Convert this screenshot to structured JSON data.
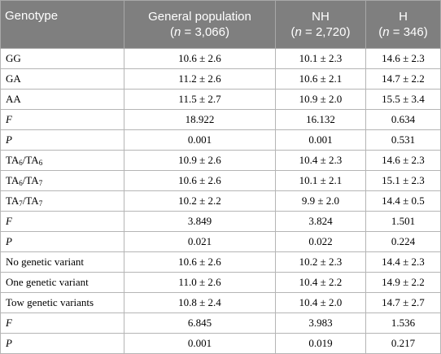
{
  "header": {
    "genotype": "Genotype",
    "general_title": "General population",
    "general_n": "(n = 3,066)",
    "nh_title": "NH",
    "nh_n": "(n = 2,720)",
    "h_title": "H",
    "h_n": "(n = 346)"
  },
  "rows": [
    {
      "label": "GG",
      "italic": false,
      "general": "10.6 ± 2.6",
      "nh": "10.1 ± 2.3",
      "h": "14.6 ± 2.3"
    },
    {
      "label": "GA",
      "italic": false,
      "general": "11.2 ± 2.6",
      "nh": "10.6 ± 2.1",
      "h": "14.7 ± 2.2"
    },
    {
      "label": "AA",
      "italic": false,
      "general": "11.5 ± 2.7",
      "nh": "10.9 ± 2.0",
      "h": "15.5 ± 3.4"
    },
    {
      "label": "F",
      "italic": true,
      "general": "18.922",
      "nh": "16.132",
      "h": "0.634"
    },
    {
      "label": "P",
      "italic": true,
      "general": "0.001",
      "nh": "0.001",
      "h": "0.531"
    },
    {
      "label": "TA6/TA6",
      "label_parts": [
        "TA",
        "6",
        "/TA",
        "6"
      ],
      "italic": false,
      "general": "10.9 ± 2.6",
      "nh": "10.4 ± 2.3",
      "h": "14.6 ± 2.3"
    },
    {
      "label": "TA6/TA7",
      "label_parts": [
        "TA",
        "6",
        "/TA",
        "7"
      ],
      "italic": false,
      "general": "10.6 ± 2.6",
      "nh": "10.1 ± 2.1",
      "h": "15.1 ± 2.3"
    },
    {
      "label": "TA7/TA7",
      "label_parts": [
        "TA",
        "7",
        "/TA",
        "7"
      ],
      "italic": false,
      "general": "10.2 ± 2.2",
      "nh": "9.9 ± 2.0",
      "h": "14.4 ± 0.5"
    },
    {
      "label": "F",
      "italic": true,
      "general": "3.849",
      "nh": "3.824",
      "h": "1.501"
    },
    {
      "label": "P",
      "italic": true,
      "general": "0.021",
      "nh": "0.022",
      "h": "0.224"
    },
    {
      "label": "No genetic variant",
      "italic": false,
      "general": "10.6 ± 2.6",
      "nh": "10.2 ± 2.3",
      "h": "14.4 ± 2.3"
    },
    {
      "label": "One genetic variant",
      "italic": false,
      "general": "11.0 ± 2.6",
      "nh": "10.4 ± 2.2",
      "h": "14.9 ± 2.2"
    },
    {
      "label": "Tow genetic variants",
      "italic": false,
      "general": "10.8 ± 2.4",
      "nh": "10.4 ± 2.0",
      "h": "14.7 ± 2.7"
    },
    {
      "label": "F",
      "italic": true,
      "general": "6.845",
      "nh": "3.983",
      "h": "1.536"
    },
    {
      "label": "P",
      "italic": true,
      "general": "0.001",
      "nh": "0.019",
      "h": "0.217"
    }
  ]
}
